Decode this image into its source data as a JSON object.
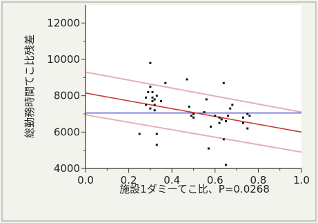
{
  "chart_data": {
    "type": "scatter",
    "xlabel": "施設1ダミーてこ比、P=0.0268",
    "ylabel": "総勤務時間てこ比残差",
    "xlim": [
      0.0,
      1.0
    ],
    "ylim": [
      4000,
      13000
    ],
    "xticks": [
      0.0,
      0.2,
      0.4,
      0.6,
      0.8,
      1.0
    ],
    "xtick_labels": [
      "0.0",
      "0.2",
      "0.4",
      "0.6",
      "0.8",
      "1.0"
    ],
    "yticks": [
      4000,
      6000,
      8000,
      10000,
      12000
    ],
    "ytick_labels": [
      "4000",
      "6000",
      "8000",
      "10000",
      "12000"
    ],
    "grid": false,
    "points": {
      "x": [
        0.25,
        0.28,
        0.28,
        0.29,
        0.3,
        0.3,
        0.3,
        0.31,
        0.31,
        0.31,
        0.32,
        0.32,
        0.32,
        0.33,
        0.33,
        0.33,
        0.35,
        0.37,
        0.47,
        0.48,
        0.49,
        0.5,
        0.5,
        0.55,
        0.56,
        0.57,
        0.58,
        0.6,
        0.62,
        0.62,
        0.63,
        0.64,
        0.64,
        0.65,
        0.65,
        0.66,
        0.67,
        0.68,
        0.73,
        0.73,
        0.75,
        0.75,
        0.76
      ],
      "y": [
        5900,
        7500,
        7900,
        8200,
        8500,
        9800,
        7300,
        7900,
        7700,
        8200,
        7800,
        7500,
        7200,
        5900,
        5300,
        8000,
        7700,
        8700,
        8900,
        7400,
        6900,
        7000,
        6800,
        7100,
        7800,
        5100,
        6300,
        6900,
        6800,
        6500,
        6700,
        8700,
        5600,
        6600,
        4200,
        6900,
        7300,
        7500,
        6500,
        6800,
        6200,
        7000,
        6900
      ]
    },
    "mean_line": {
      "y": 7050,
      "color": "#6a6ad8"
    },
    "fit_line": {
      "y_at_xmin": 8150,
      "y_at_xmax": 6000,
      "color": "#c63c3c"
    },
    "confidence_band": {
      "upper": {
        "y_at_xmin": 9300,
        "y_at_xmax": 7100
      },
      "lower": {
        "y_at_xmin": 6950,
        "y_at_xmax": 4900
      },
      "color": "#e09aa2"
    },
    "point_color": "#111111"
  }
}
